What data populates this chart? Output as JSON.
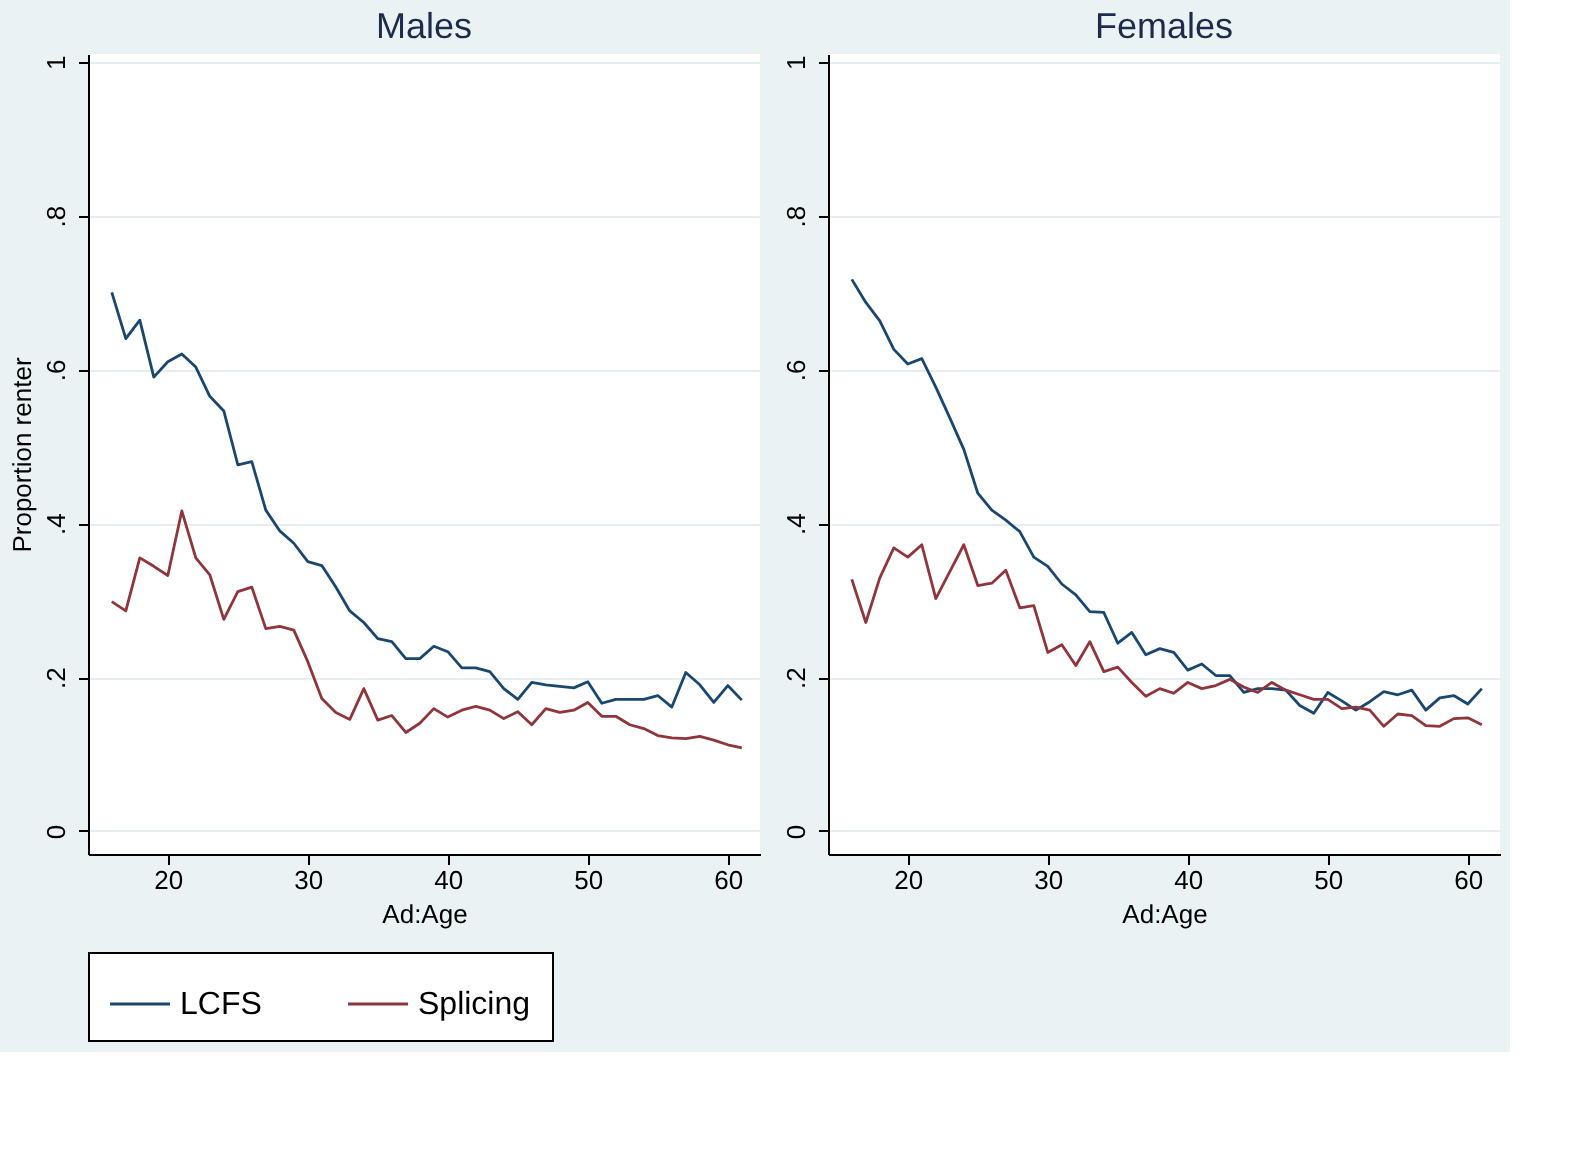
{
  "chart_data": [
    {
      "type": "line",
      "title": "Males",
      "xlabel": "Ad:Age",
      "ylabel": "Proportion renter",
      "x": [
        16,
        17,
        18,
        19,
        20,
        21,
        22,
        23,
        24,
        25,
        26,
        27,
        28,
        29,
        30,
        31,
        32,
        33,
        34,
        35,
        36,
        37,
        38,
        39,
        40,
        41,
        42,
        43,
        44,
        45,
        46,
        47,
        48,
        49,
        50,
        51,
        52,
        53,
        54,
        55,
        56,
        57,
        58,
        59,
        60,
        61
      ],
      "series": [
        {
          "name": "LCFS",
          "color": "#1a476f",
          "values": [
            0.7,
            0.64,
            0.664,
            0.59,
            0.61,
            0.62,
            0.603,
            0.565,
            0.546,
            0.476,
            0.48,
            0.417,
            0.39,
            0.374,
            0.35,
            0.345,
            0.317,
            0.286,
            0.271,
            0.25,
            0.246,
            0.224,
            0.224,
            0.24,
            0.233,
            0.212,
            0.212,
            0.207,
            0.185,
            0.171,
            0.193,
            0.19,
            0.188,
            0.186,
            0.194,
            0.166,
            0.171,
            0.171,
            0.171,
            0.176,
            0.161,
            0.206,
            0.19,
            0.167,
            0.189,
            0.17
          ]
        },
        {
          "name": "Splicing",
          "color": "#90353b",
          "values": [
            0.298,
            0.286,
            0.355,
            0.344,
            0.332,
            0.416,
            0.355,
            0.333,
            0.275,
            0.311,
            0.317,
            0.263,
            0.266,
            0.261,
            0.22,
            0.172,
            0.154,
            0.145,
            0.185,
            0.144,
            0.15,
            0.128,
            0.14,
            0.159,
            0.148,
            0.157,
            0.162,
            0.157,
            0.146,
            0.155,
            0.138,
            0.159,
            0.154,
            0.157,
            0.167,
            0.149,
            0.149,
            0.138,
            0.133,
            0.124,
            0.121,
            0.12,
            0.123,
            0.118,
            0.112,
            0.108
          ]
        }
      ],
      "xlim": [
        14.3,
        62.3
      ],
      "xticks": [
        20,
        30,
        40,
        50,
        60
      ],
      "ylim": [
        -0.03,
        1.01
      ],
      "yticks": [
        {
          "value": 0,
          "label": "0"
        },
        {
          "value": 0.2,
          "label": ".2"
        },
        {
          "value": 0.4,
          "label": ".4"
        },
        {
          "value": 0.6,
          "label": ".6"
        },
        {
          "value": 0.8,
          "label": ".8"
        },
        {
          "value": 1,
          "label": "1"
        }
      ],
      "grid": "y",
      "legend": "bottom",
      "line_style": "solid",
      "marker": "none"
    },
    {
      "type": "line",
      "title": "Females",
      "xlabel": "Ad:Age",
      "x": [
        16,
        17,
        18,
        19,
        20,
        21,
        22,
        23,
        24,
        25,
        26,
        27,
        28,
        29,
        30,
        31,
        32,
        33,
        34,
        35,
        36,
        37,
        38,
        39,
        40,
        41,
        42,
        43,
        44,
        45,
        46,
        47,
        48,
        49,
        50,
        51,
        52,
        53,
        54,
        55,
        56,
        57,
        58,
        59,
        60,
        61
      ],
      "series": [
        {
          "name": "LCFS",
          "color": "#1a476f",
          "values": [
            0.717,
            0.687,
            0.663,
            0.626,
            0.607,
            0.614,
            0.577,
            0.537,
            0.496,
            0.439,
            0.417,
            0.404,
            0.389,
            0.356,
            0.344,
            0.321,
            0.307,
            0.285,
            0.284,
            0.244,
            0.258,
            0.229,
            0.237,
            0.232,
            0.209,
            0.217,
            0.202,
            0.202,
            0.18,
            0.185,
            0.185,
            0.183,
            0.163,
            0.153,
            0.18,
            0.169,
            0.157,
            0.168,
            0.181,
            0.177,
            0.183,
            0.157,
            0.173,
            0.176,
            0.165,
            0.185
          ]
        },
        {
          "name": "Splicing",
          "color": "#90353b",
          "values": [
            0.327,
            0.271,
            0.329,
            0.368,
            0.356,
            0.372,
            0.302,
            0.337,
            0.372,
            0.319,
            0.322,
            0.339,
            0.29,
            0.293,
            0.232,
            0.242,
            0.215,
            0.246,
            0.207,
            0.213,
            0.193,
            0.175,
            0.185,
            0.179,
            0.193,
            0.185,
            0.189,
            0.197,
            0.187,
            0.18,
            0.193,
            0.183,
            0.177,
            0.171,
            0.171,
            0.159,
            0.161,
            0.157,
            0.136,
            0.152,
            0.15,
            0.137,
            0.136,
            0.146,
            0.147,
            0.138
          ]
        }
      ],
      "xlim": [
        14.3,
        62.3
      ],
      "xticks": [
        20,
        30,
        40,
        50,
        60
      ],
      "ylim": [
        -0.03,
        1.01
      ],
      "yticks": [
        {
          "value": 0,
          "label": "0"
        },
        {
          "value": 0.2,
          "label": ".2"
        },
        {
          "value": 0.4,
          "label": ".4"
        },
        {
          "value": 0.6,
          "label": ".6"
        },
        {
          "value": 0.8,
          "label": ".8"
        },
        {
          "value": 1,
          "label": "1"
        }
      ],
      "grid": "y",
      "legend": "bottom",
      "line_style": "solid",
      "marker": "none"
    }
  ]
}
